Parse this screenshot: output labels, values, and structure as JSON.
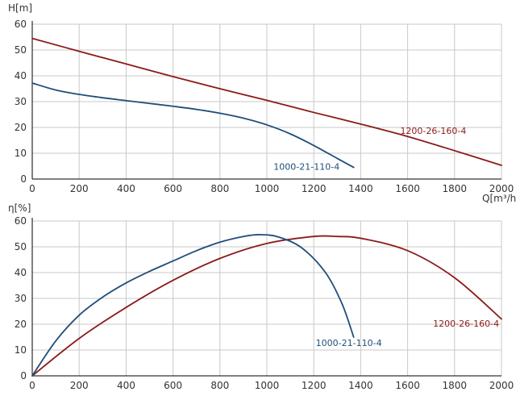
{
  "colors": {
    "red": "#8b1a1a",
    "blue": "#1f4e79",
    "grid": "#c8c8c8",
    "axis": "#000000"
  },
  "chart_data": [
    {
      "type": "line",
      "title": "",
      "xlabel": "Q[m³/h]",
      "ylabel": "H[m]",
      "xlim": [
        0,
        2000
      ],
      "ylim": [
        0,
        60
      ],
      "x_ticks": [
        0,
        200,
        400,
        600,
        800,
        1000,
        1200,
        1400,
        1600,
        1800,
        2000
      ],
      "y_ticks": [
        0,
        10,
        20,
        30,
        40,
        50,
        60
      ],
      "x_tick_labels": [
        "0",
        "200",
        "400",
        "600",
        "800",
        "1000",
        "1200",
        "1400",
        "1600",
        "1800",
        "2000"
      ],
      "y_tick_labels": [
        "0",
        "10",
        "20",
        "30",
        "40",
        "50",
        "60"
      ],
      "grid": true,
      "series": [
        {
          "name": "1200-26-160-4",
          "color": "#8b1a1a",
          "x": [
            0,
            200,
            400,
            600,
            800,
            1000,
            1200,
            1400,
            1600,
            1800,
            2000
          ],
          "y": [
            54.5,
            49.5,
            44.6,
            39.7,
            35.0,
            30.5,
            25.8,
            21.3,
            16.5,
            11.0,
            5.3
          ]
        },
        {
          "name": "1000-21-110-4",
          "color": "#1f4e79",
          "x": [
            0,
            100,
            200,
            300,
            400,
            500,
            600,
            700,
            800,
            900,
            1000,
            1100,
            1200,
            1300,
            1370
          ],
          "y": [
            37.2,
            34.5,
            32.8,
            31.5,
            30.4,
            29.3,
            28.2,
            27.0,
            25.5,
            23.6,
            21.0,
            17.5,
            13.0,
            8.0,
            4.5
          ]
        }
      ]
    },
    {
      "type": "line",
      "title": "",
      "xlabel": "",
      "ylabel": "η[%]",
      "xlim": [
        0,
        2000
      ],
      "ylim": [
        0,
        60
      ],
      "x_ticks": [
        0,
        200,
        400,
        600,
        800,
        1000,
        1200,
        1400,
        1600,
        1800,
        2000
      ],
      "y_ticks": [
        0,
        10,
        20,
        30,
        40,
        50,
        60
      ],
      "x_tick_labels": [
        "0",
        "200",
        "400",
        "600",
        "800",
        "1000",
        "1200",
        "1400",
        "1600",
        "1800",
        "2000"
      ],
      "y_tick_labels": [
        "0",
        "10",
        "20",
        "30",
        "40",
        "50",
        "60"
      ],
      "grid": true,
      "series": [
        {
          "name": "1200-26-160-4",
          "color": "#8b1a1a",
          "x": [
            0,
            200,
            400,
            600,
            800,
            1000,
            1200,
            1300,
            1400,
            1600,
            1800,
            2000
          ],
          "y": [
            0,
            14.5,
            26.5,
            37.0,
            45.5,
            51.3,
            54.0,
            54.0,
            53.3,
            48.5,
            38.0,
            22.0
          ]
        },
        {
          "name": "1000-21-110-4",
          "color": "#1f4e79",
          "x": [
            0,
            100,
            200,
            300,
            400,
            500,
            600,
            700,
            800,
            900,
            970,
            1050,
            1150,
            1250,
            1320,
            1370
          ],
          "y": [
            0,
            13.5,
            23.5,
            30.5,
            36.0,
            40.5,
            44.5,
            48.5,
            51.8,
            54.0,
            54.7,
            53.8,
            49.5,
            40.0,
            28.0,
            15.0
          ]
        }
      ]
    }
  ]
}
